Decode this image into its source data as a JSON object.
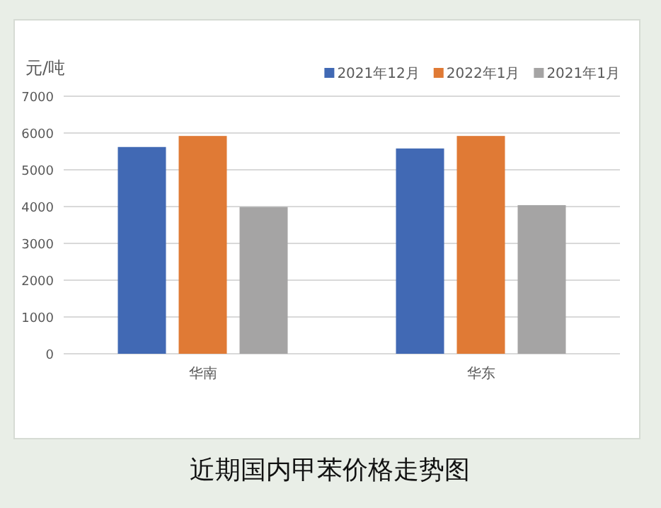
{
  "chart_data": {
    "type": "bar",
    "title": "近期国内甲苯价格走势图",
    "ylabel": "元/吨",
    "categories": [
      "华南",
      "华东"
    ],
    "series": [
      {
        "name": "2021年12月",
        "color": "#4169b4",
        "values": [
          5620,
          5580
        ]
      },
      {
        "name": "2022年1月",
        "color": "#e07a35",
        "values": [
          5920,
          5920
        ]
      },
      {
        "name": "2021年1月",
        "color": "#a5a4a4",
        "values": [
          3990,
          4040
        ]
      }
    ],
    "ylim": [
      0,
      7000
    ],
    "yticks": [
      0,
      1000,
      2000,
      3000,
      4000,
      5000,
      6000,
      7000
    ],
    "grid": "y",
    "legend": "top right"
  }
}
